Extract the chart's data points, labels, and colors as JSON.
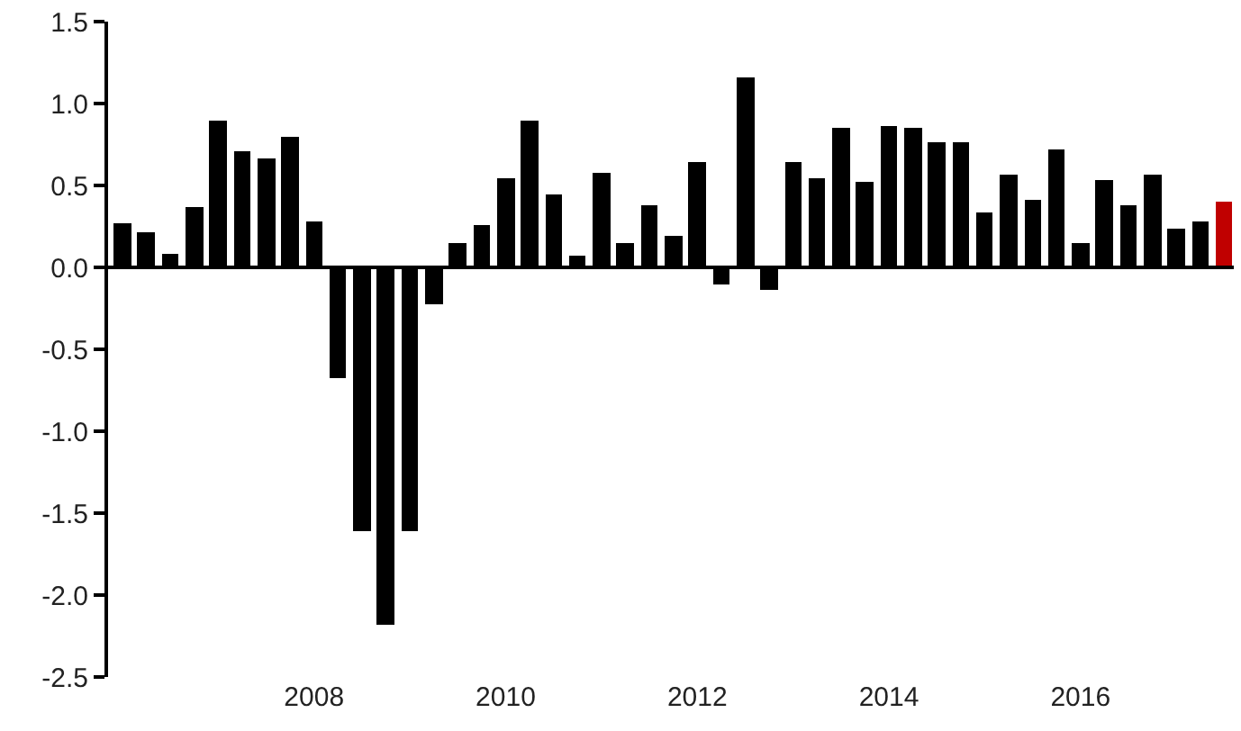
{
  "chart_data": {
    "type": "bar",
    "x": [
      2006.0,
      2006.25,
      2006.5,
      2006.75,
      2007.0,
      2007.25,
      2007.5,
      2007.75,
      2008.0,
      2008.25,
      2008.5,
      2008.75,
      2009.0,
      2009.25,
      2009.5,
      2009.75,
      2010.0,
      2010.25,
      2010.5,
      2010.75,
      2011.0,
      2011.25,
      2011.5,
      2011.75,
      2012.0,
      2012.25,
      2012.5,
      2012.75,
      2013.0,
      2013.25,
      2013.5,
      2013.75,
      2014.0,
      2014.25,
      2014.5,
      2014.75,
      2015.0,
      2015.25,
      2015.5,
      2015.75,
      2016.0,
      2016.25,
      2016.5,
      2016.75,
      2017.0,
      2017.25,
      2017.5
    ],
    "values": [
      0.27,
      0.21,
      0.08,
      0.37,
      0.9,
      0.71,
      0.67,
      0.8,
      0.28,
      -0.68,
      -1.61,
      -2.18,
      -1.61,
      -0.23,
      0.15,
      0.26,
      0.54,
      0.9,
      0.45,
      0.07,
      0.58,
      0.15,
      0.38,
      0.19,
      0.64,
      -0.1,
      1.16,
      -0.14,
      0.64,
      0.54,
      0.85,
      0.52,
      0.86,
      0.85,
      0.76,
      0.76,
      0.34,
      0.57,
      0.41,
      0.72,
      0.15,
      0.53,
      0.38,
      0.57,
      0.24,
      0.28,
      0.4
    ],
    "colors": [
      "#000000",
      "#000000",
      "#000000",
      "#000000",
      "#000000",
      "#000000",
      "#000000",
      "#000000",
      "#000000",
      "#000000",
      "#000000",
      "#000000",
      "#000000",
      "#000000",
      "#000000",
      "#000000",
      "#000000",
      "#000000",
      "#000000",
      "#000000",
      "#000000",
      "#000000",
      "#000000",
      "#000000",
      "#000000",
      "#000000",
      "#000000",
      "#000000",
      "#000000",
      "#000000",
      "#000000",
      "#000000",
      "#000000",
      "#000000",
      "#000000",
      "#000000",
      "#000000",
      "#000000",
      "#000000",
      "#000000",
      "#000000",
      "#000000",
      "#000000",
      "#000000",
      "#000000",
      "#000000",
      "#c00000"
    ],
    "xlim": [
      2005.85,
      2017.6
    ],
    "xticks": [
      2008,
      2010,
      2012,
      2014,
      2016
    ],
    "ylim": [
      -2.5,
      1.5
    ],
    "yticks": [
      {
        "value": -2.5,
        "label": "-2.5"
      },
      {
        "value": -2.0,
        "label": "-2.0"
      },
      {
        "value": -1.5,
        "label": "-1.5"
      },
      {
        "value": -1.0,
        "label": "-1.0"
      },
      {
        "value": -0.5,
        "label": "-0.5"
      },
      {
        "value": 0.0,
        "label": "0.0"
      },
      {
        "value": 0.5,
        "label": "0.5"
      },
      {
        "value": 1.0,
        "label": "1.0"
      },
      {
        "value": 1.5,
        "label": "1.5"
      }
    ],
    "ref_lines": [
      {
        "axis": "y",
        "value": 0,
        "color": "#000000"
      }
    ]
  }
}
